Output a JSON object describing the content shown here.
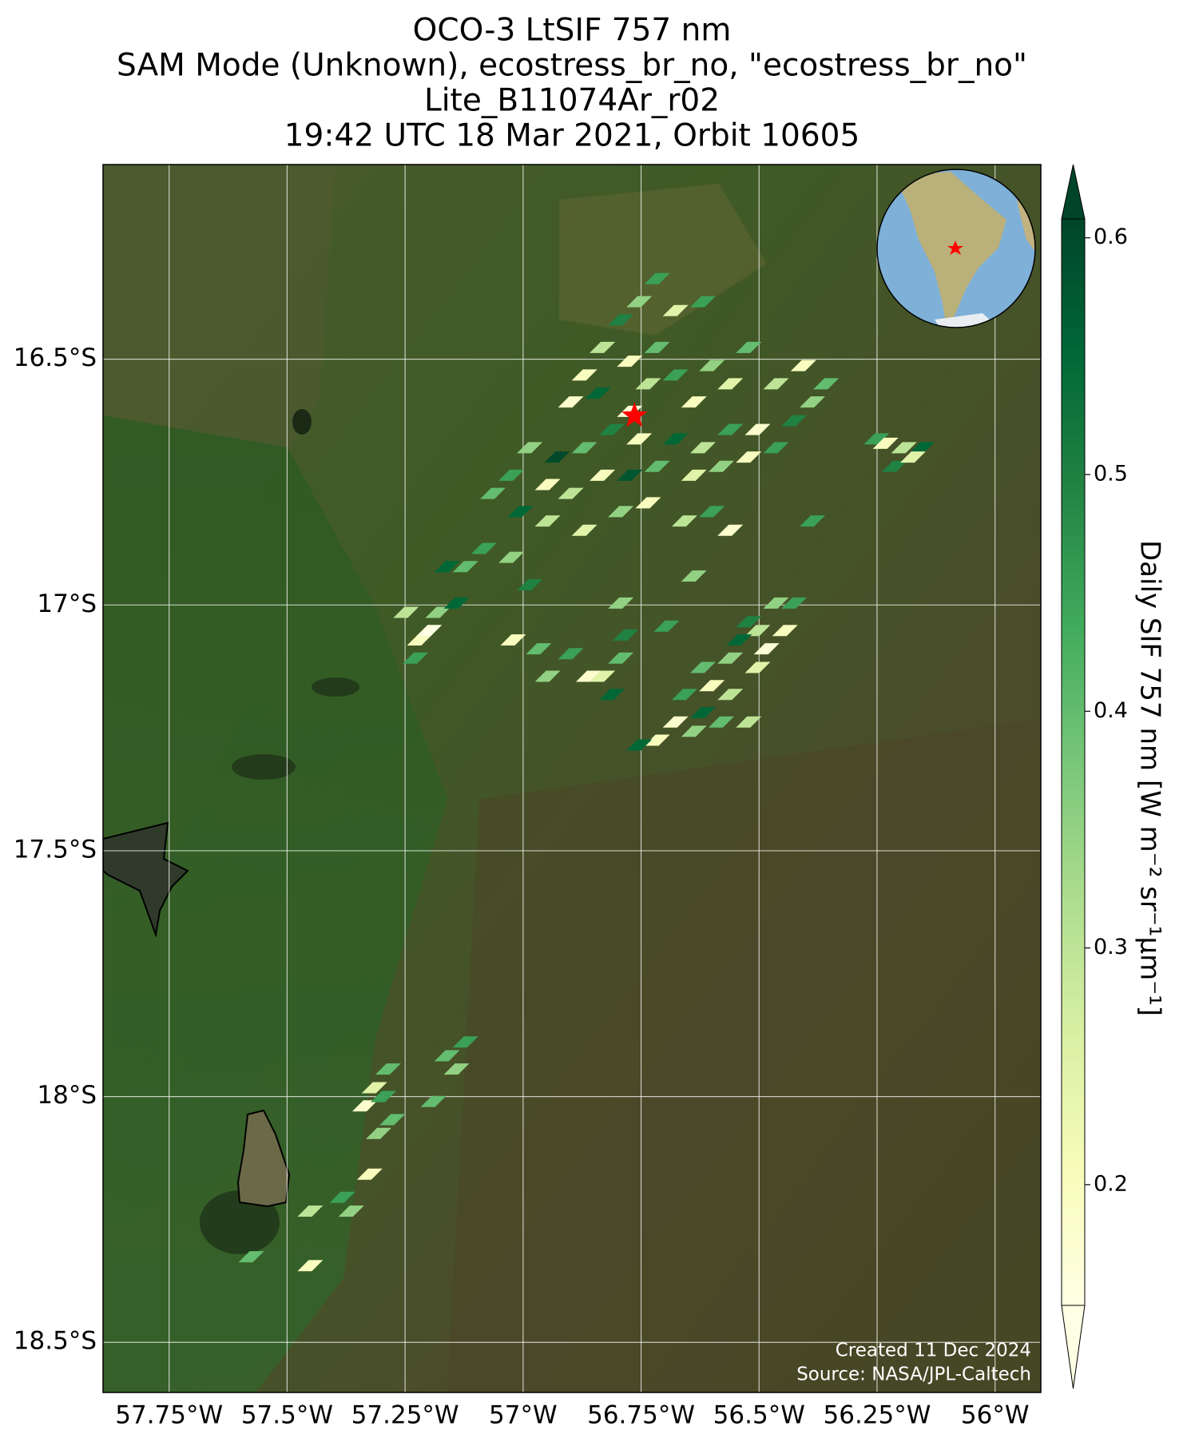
{
  "chart_data": {
    "type": "map",
    "title": [
      "OCO-3 LtSIF 757 nm",
      "SAM Mode (Unknown), ecostress_br_no, \"ecostress_br_no\"",
      "Lite_B11074Ar_r02",
      "19:42 UTC 18 Mar 2021, Orbit 10605"
    ],
    "xlim": [
      -57.89,
      -55.903
    ],
    "ylim": [
      -18.602,
      -16.104
    ],
    "xticks": [
      {
        "value": -57.75,
        "label": "57.75°W"
      },
      {
        "value": -57.5,
        "label": "57.5°W"
      },
      {
        "value": -57.25,
        "label": "57.25°W"
      },
      {
        "value": -57,
        "label": "57°W"
      },
      {
        "value": -56.75,
        "label": "56.75°W"
      },
      {
        "value": -56.5,
        "label": "56.5°W"
      },
      {
        "value": -56.25,
        "label": "56.25°W"
      },
      {
        "value": -56,
        "label": "56°W"
      }
    ],
    "yticks": [
      {
        "value": -16.5,
        "label": "16.5°S"
      },
      {
        "value": -17,
        "label": "17°S"
      },
      {
        "value": -17.5,
        "label": "17.5°S"
      },
      {
        "value": -18,
        "label": "18°S"
      },
      {
        "value": -18.5,
        "label": "18.5°S"
      }
    ],
    "grid": true,
    "x": [
      -56.716,
      -56.754,
      -56.793,
      -56.677,
      -56.619,
      -56.832,
      -56.774,
      -56.716,
      -56.87,
      -56.899,
      -56.841,
      -56.774,
      -56.735,
      -56.677,
      -56.638,
      -56.6,
      -56.561,
      -56.522,
      -56.464,
      -56.426,
      -56.387,
      -56.503,
      -56.561,
      -56.619,
      -56.677,
      -56.754,
      -56.812,
      -56.87,
      -56.928,
      -56.986,
      -57.025,
      -56.948,
      -56.899,
      -56.832,
      -56.774,
      -56.716,
      -56.638,
      -56.58,
      -56.522,
      -56.464,
      -57.006,
      -57.064,
      -56.948,
      -56.87,
      -56.793,
      -56.735,
      -56.658,
      -56.6,
      -56.561,
      -57.083,
      -57.025,
      -56.986,
      -57.122,
      -57.161,
      -56.638,
      -56.387,
      -56.406,
      -56.358,
      -56.251,
      -56.193,
      -56.155,
      -56.213,
      -56.174,
      -56.232,
      -57.248,
      -57.219,
      -57.228,
      -57.18,
      -57.141,
      -57.199,
      -57.021,
      -56.967,
      -56.948,
      -56.899,
      -56.861,
      -56.832,
      -56.793,
      -56.783,
      -56.812,
      -56.793,
      -56.696,
      -56.464,
      -56.426,
      -56.503,
      -56.445,
      -56.542,
      -56.484,
      -56.561,
      -56.619,
      -56.503,
      -56.6,
      -56.658,
      -56.561,
      -56.619,
      -56.677,
      -56.638,
      -56.716,
      -56.754,
      -56.58,
      -56.522,
      -56.522,
      -57.122,
      -57.161,
      -57.141,
      -57.286,
      -57.315,
      -57.335,
      -57.296,
      -57.277,
      -57.306,
      -57.19,
      -57.325,
      -57.383,
      -57.364,
      -57.451,
      -57.576,
      -57.451
    ],
    "y": [
      -16.336,
      -16.383,
      -16.42,
      -16.401,
      -16.383,
      -16.476,
      -16.504,
      -16.476,
      -16.532,
      -16.587,
      -16.569,
      -16.606,
      -16.55,
      -16.532,
      -16.587,
      -16.513,
      -16.55,
      -16.476,
      -16.55,
      -16.625,
      -16.587,
      -16.643,
      -16.643,
      -16.68,
      -16.662,
      -16.662,
      -16.643,
      -16.68,
      -16.699,
      -16.68,
      -16.736,
      -16.755,
      -16.773,
      -16.736,
      -16.736,
      -16.718,
      -16.736,
      -16.718,
      -16.699,
      -16.68,
      -16.81,
      -16.773,
      -16.829,
      -16.848,
      -16.81,
      -16.792,
      -16.829,
      -16.81,
      -16.848,
      -16.885,
      -16.903,
      -16.959,
      -16.922,
      -16.922,
      -16.941,
      -16.829,
      -16.513,
      -16.55,
      -16.662,
      -16.68,
      -16.68,
      -16.718,
      -16.699,
      -16.671,
      -17.015,
      -17.071,
      -17.108,
      -17.015,
      -16.996,
      -17.052,
      -17.071,
      -17.089,
      -17.145,
      -17.099,
      -17.145,
      -17.145,
      -17.108,
      -17.061,
      -17.182,
      -16.996,
      -17.043,
      -16.996,
      -16.996,
      -17.052,
      -17.052,
      -17.071,
      -17.089,
      -17.108,
      -17.127,
      -17.127,
      -17.164,
      -17.182,
      -17.182,
      -17.219,
      -17.238,
      -17.257,
      -17.275,
      -17.285,
      -17.238,
      -17.238,
      -17.034,
      -17.889,
      -17.917,
      -17.944,
      -17.944,
      -17.982,
      -18.019,
      -18.0,
      -18.047,
      -18.075,
      -18.01,
      -18.158,
      -18.205,
      -18.233,
      -18.233,
      -18.326,
      -18.344
    ],
    "values": [
      0.45,
      0.35,
      0.5,
      0.25,
      0.45,
      0.3,
      0.2,
      0.4,
      0.2,
      0.18,
      0.55,
      0.17,
      0.3,
      0.45,
      0.2,
      0.35,
      0.25,
      0.4,
      0.3,
      0.5,
      0.35,
      0.18,
      0.45,
      0.3,
      0.55,
      0.2,
      0.5,
      0.4,
      0.6,
      0.35,
      0.45,
      0.2,
      0.3,
      0.2,
      0.58,
      0.4,
      0.25,
      0.35,
      0.2,
      0.45,
      0.55,
      0.4,
      0.3,
      0.25,
      0.35,
      0.2,
      0.3,
      0.45,
      0.18,
      0.45,
      0.35,
      0.5,
      0.4,
      0.55,
      0.35,
      0.45,
      0.2,
      0.4,
      0.45,
      0.3,
      0.55,
      0.5,
      0.25,
      0.2,
      0.3,
      0.2,
      0.45,
      0.35,
      0.55,
      0.15,
      0.2,
      0.4,
      0.35,
      0.45,
      0.18,
      0.25,
      0.4,
      0.5,
      0.55,
      0.35,
      0.45,
      0.35,
      0.45,
      0.3,
      0.2,
      0.55,
      0.17,
      0.35,
      0.4,
      0.25,
      0.2,
      0.45,
      0.3,
      0.55,
      0.18,
      0.35,
      0.2,
      0.55,
      0.4,
      0.3,
      0.5,
      0.45,
      0.4,
      0.35,
      0.4,
      0.25,
      0.18,
      0.45,
      0.4,
      0.35,
      0.4,
      0.2,
      0.45,
      0.35,
      0.3,
      0.4,
      0.2
    ],
    "marker": {
      "x": -56.764,
      "y": -16.615,
      "color": "#ff0000"
    },
    "colorbar": {
      "label": "Daily SIF 757 nm [W m⁻² sr⁻¹μm⁻¹]",
      "clim": [
        0.149,
        0.608
      ],
      "ticks": [
        0.2,
        0.3,
        0.4,
        0.5,
        0.6
      ],
      "extend": "both",
      "colors": [
        "#ffffe5",
        "#f7fcb9",
        "#d9f0a3",
        "#addd8e",
        "#78c679",
        "#41ab5d",
        "#238443",
        "#006837",
        "#004529"
      ]
    },
    "annotations": [
      "Created 11 Dec 2024",
      "Source: NASA/JPL-Caltech"
    ]
  }
}
